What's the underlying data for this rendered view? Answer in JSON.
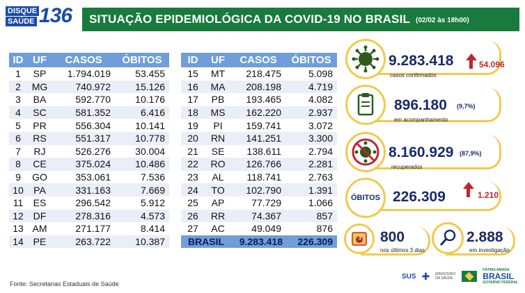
{
  "header": {
    "logo_line1": "DISQUE",
    "logo_line2": "SAÚDE",
    "logo_number": "136",
    "title": "SITUAÇÃO EPIDEMIOLÓGICA DA COVID-19 NO BRASIL",
    "date": "(02/02 às 18h00)"
  },
  "table_headers": [
    "ID",
    "UF",
    "CASOS",
    "ÓBITOS"
  ],
  "table_left": [
    [
      "1",
      "SP",
      "1.794.019",
      "53.455"
    ],
    [
      "2",
      "MG",
      "740.972",
      "15.126"
    ],
    [
      "3",
      "BA",
      "592.770",
      "10.176"
    ],
    [
      "4",
      "SC",
      "581.352",
      "6.416"
    ],
    [
      "5",
      "PR",
      "556.304",
      "10.141"
    ],
    [
      "6",
      "RS",
      "551.317",
      "10.778"
    ],
    [
      "7",
      "RJ",
      "526.276",
      "30.004"
    ],
    [
      "8",
      "CE",
      "375.024",
      "10.486"
    ],
    [
      "9",
      "GO",
      "353.061",
      "7.536"
    ],
    [
      "10",
      "PA",
      "331.163",
      "7.669"
    ],
    [
      "11",
      "ES",
      "296.542",
      "5.912"
    ],
    [
      "12",
      "DF",
      "278.316",
      "4.573"
    ],
    [
      "13",
      "AM",
      "271.177",
      "8.414"
    ],
    [
      "14",
      "PE",
      "263.722",
      "10.387"
    ]
  ],
  "table_right": [
    [
      "15",
      "MT",
      "218.475",
      "5.098"
    ],
    [
      "16",
      "MA",
      "208.198",
      "4.719"
    ],
    [
      "17",
      "PB",
      "193.465",
      "4.082"
    ],
    [
      "18",
      "MS",
      "162.220",
      "2.937"
    ],
    [
      "19",
      "PI",
      "159.741",
      "3.072"
    ],
    [
      "20",
      "RN",
      "141.251",
      "3.300"
    ],
    [
      "21",
      "SE",
      "138.611",
      "2.794"
    ],
    [
      "22",
      "RO",
      "126.766",
      "2.281"
    ],
    [
      "23",
      "AL",
      "118.741",
      "2.763"
    ],
    [
      "24",
      "TO",
      "102.790",
      "1.391"
    ],
    [
      "25",
      "AP",
      "77.729",
      "1.066"
    ],
    [
      "26",
      "RR",
      "74.367",
      "857"
    ],
    [
      "27",
      "AC",
      "49.049",
      "876"
    ]
  ],
  "total": {
    "label": "BRASIL",
    "casos": "9.283.418",
    "obitos": "226.309"
  },
  "panel": {
    "confirmados": {
      "value": "9.283.418",
      "delta": "54.096",
      "label": "casos confirmados"
    },
    "acompanhamento": {
      "value": "896.180",
      "pct": "(9,7%)",
      "label": "em acompanhamento"
    },
    "recuperados": {
      "value": "8.160.929",
      "pct": "(87,9%)",
      "label": "recuperados"
    },
    "obitos": {
      "tag": "ÓBITOS",
      "value": "226.309",
      "delta": "1.210"
    },
    "ultimos": {
      "value": "800",
      "label": "nos últimos 3 dias",
      "badge": "3"
    },
    "investigacao": {
      "value": "2.888",
      "label": "em investigação"
    }
  },
  "footer": {
    "source": "Fonte: Secretarias Estaduais de Saúde",
    "sus": "SUS",
    "ministerio": "MINISTÉRIO DA SAÚDE",
    "patria": "PÁTRIA AMADA",
    "brasil": "BRASIL",
    "gov": "GOVERNO FEDERAL"
  },
  "colors": {
    "green": "#187a3c",
    "blue_header": "#6f9ed8",
    "yellow": "#f2c94c",
    "red": "#c0262d",
    "navy": "#1a2a6c"
  }
}
